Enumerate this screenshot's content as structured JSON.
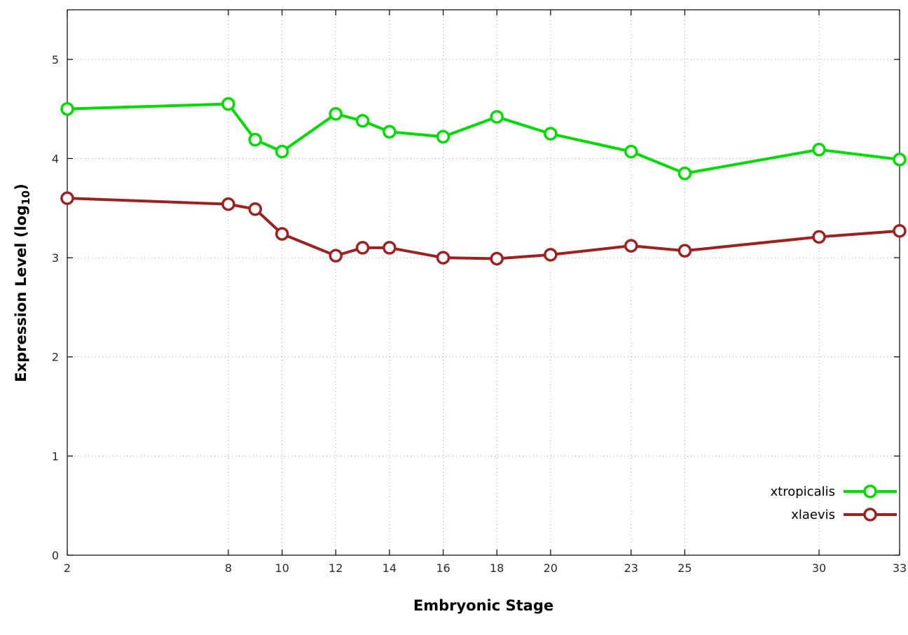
{
  "chart_data": {
    "type": "line",
    "title": "",
    "xlabel": "Embryonic Stage",
    "ylabel": "Expression Level (log10)",
    "ylabel_parts": {
      "main": "Expression Level (log",
      "sub": "10",
      "close": ")"
    },
    "xlim": [
      2,
      33
    ],
    "ylim": [
      0,
      5.5
    ],
    "x_ticks": [
      2,
      8,
      10,
      12,
      14,
      16,
      18,
      20,
      23,
      25,
      30,
      33
    ],
    "x_tick_labels": [
      "2",
      "8",
      "10",
      "12",
      "14",
      "16",
      "18",
      "20",
      "23",
      "25",
      "30",
      "33"
    ],
    "y_ticks": [
      0,
      1,
      2,
      3,
      4,
      5
    ],
    "y_tick_labels": [
      "0",
      "1",
      "2",
      "3",
      "4",
      "5"
    ],
    "grid": true,
    "legend_position": "bottom-right",
    "x": [
      2,
      8,
      9,
      10,
      12,
      13,
      14,
      16,
      18,
      20,
      23,
      25,
      30,
      33
    ],
    "series": [
      {
        "name": "xtropicalis",
        "color": "#00dd00",
        "values": [
          4.5,
          4.55,
          4.19,
          4.07,
          4.45,
          4.38,
          4.27,
          4.22,
          4.42,
          4.25,
          4.07,
          3.85,
          4.09,
          3.99
        ]
      },
      {
        "name": "xlaevis",
        "color": "#a02020",
        "values": [
          3.6,
          3.54,
          3.49,
          3.24,
          3.02,
          3.1,
          3.1,
          3.0,
          2.99,
          3.03,
          3.12,
          3.07,
          3.21,
          3.27
        ]
      }
    ]
  },
  "colors": {
    "background": "#ffffff",
    "border": "#000000",
    "grid": "#a6a6a6",
    "tick_text": "#2a2a2a",
    "legend_text": "#000000"
  }
}
